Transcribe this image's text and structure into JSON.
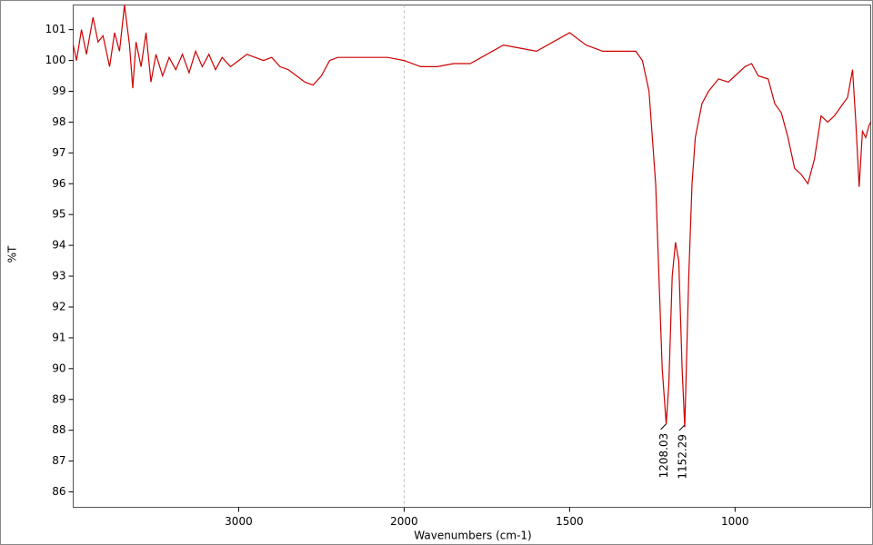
{
  "chart_data": {
    "type": "line",
    "xlabel": "Wavenumbers (cm-1)",
    "ylabel": "%T",
    "x": [
      4000,
      3980,
      3950,
      3920,
      3880,
      3850,
      3820,
      3780,
      3750,
      3720,
      3690,
      3660,
      3640,
      3620,
      3590,
      3560,
      3530,
      3500,
      3460,
      3420,
      3380,
      3340,
      3300,
      3260,
      3220,
      3180,
      3140,
      3100,
      3050,
      3000,
      2950,
      2900,
      2850,
      2800,
      2750,
      2700,
      2650,
      2600,
      2550,
      2500,
      2450,
      2400,
      2300,
      2200,
      2100,
      2000,
      1950,
      1900,
      1850,
      1800,
      1750,
      1700,
      1650,
      1600,
      1550,
      1500,
      1450,
      1400,
      1350,
      1300,
      1280,
      1260,
      1240,
      1230,
      1220,
      1208,
      1200,
      1190,
      1180,
      1170,
      1160,
      1152,
      1140,
      1130,
      1120,
      1100,
      1080,
      1050,
      1020,
      1000,
      970,
      950,
      930,
      900,
      880,
      860,
      840,
      820,
      800,
      780,
      760,
      740,
      720,
      700,
      680,
      660,
      645,
      635,
      625,
      615,
      605,
      595,
      590
    ],
    "values": [
      100.5,
      100.0,
      101.0,
      100.2,
      101.4,
      100.6,
      100.8,
      99.8,
      100.9,
      100.3,
      101.8,
      100.5,
      99.1,
      100.6,
      99.8,
      100.9,
      99.3,
      100.2,
      99.5,
      100.1,
      99.7,
      100.2,
      99.6,
      100.3,
      99.8,
      100.2,
      99.7,
      100.1,
      99.8,
      100.0,
      100.2,
      100.1,
      100.0,
      100.1,
      99.8,
      99.7,
      99.5,
      99.3,
      99.2,
      99.5,
      100.0,
      100.1,
      100.1,
      100.1,
      100.1,
      100.0,
      99.8,
      99.8,
      99.9,
      99.9,
      100.2,
      100.5,
      100.4,
      100.3,
      100.6,
      100.9,
      100.5,
      100.3,
      100.3,
      100.3,
      100.0,
      99.0,
      96.0,
      93.0,
      90.0,
      88.2,
      89.5,
      93.0,
      94.1,
      93.5,
      90.0,
      88.1,
      93.0,
      96.0,
      97.5,
      98.6,
      99.0,
      99.4,
      99.3,
      99.5,
      99.8,
      99.9,
      99.5,
      99.4,
      98.6,
      98.3,
      97.5,
      96.5,
      96.3,
      96.0,
      96.8,
      98.2,
      98.0,
      98.2,
      98.5,
      98.8,
      99.7,
      98.0,
      95.9,
      97.7,
      97.5,
      97.9,
      98.0
    ],
    "color": "#cc0000",
    "xlim": [
      4000,
      590
    ],
    "x_break": 2000,
    "xticks": [
      3000,
      2000,
      1500,
      1000
    ],
    "ylim": [
      85.5,
      101.8
    ],
    "yticks": [
      86,
      87,
      88,
      89,
      90,
      91,
      92,
      93,
      94,
      95,
      96,
      97,
      98,
      99,
      100,
      101
    ],
    "peaks": [
      1208.03,
      1152.29
    ]
  }
}
